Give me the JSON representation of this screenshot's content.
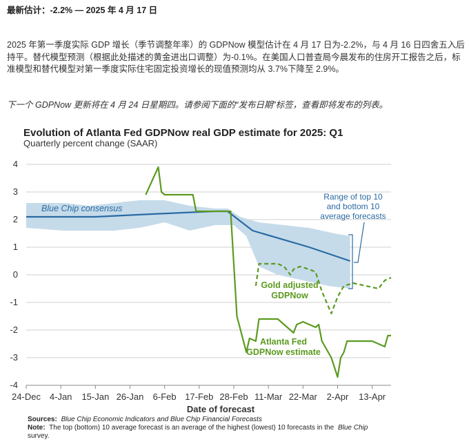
{
  "headline": "最新估计：-2.2% — 2025 年 4 月 17 日",
  "paragraph": "2025 年第一季度实际 GDP 增长（季节调整年率）的 GDPNow 模型估计在 4 月 17 日为-2.2%，与 4 月 16 日四舍五入后持平。替代模型预测（根据此处描述的黄金进出口调整）为-0.1%。在美国人口普查局今晨发布的住房开工报告之后，标准模型和替代模型对第一季度实际住宅固定投资增长的现值预测均从 3.7%下降至 2.9%。",
  "next_note": "下一个 GDPNow 更新将在 4 月 24 日星期四。请参阅下面的“发布日期”标签，查看即将发布的列表。",
  "chart_data": {
    "type": "line",
    "title": "Evolution of Atlanta Fed GDPNow real GDP estimate for 2025: Q1",
    "subtitle": "Quarterly percent change (SAAR)",
    "xlabel": "Date of forecast",
    "ylabel": "",
    "ylim": [
      -4,
      4
    ],
    "yticks": [
      4,
      3,
      2,
      1,
      0,
      -1,
      -2,
      -3,
      -4
    ],
    "xlim_days": [
      0,
      116
    ],
    "x_ticks": [
      {
        "label": "24-Dec",
        "day": 0
      },
      {
        "label": "4-Jan",
        "day": 11
      },
      {
        "label": "15-Jan",
        "day": 22
      },
      {
        "label": "26-Jan",
        "day": 33
      },
      {
        "label": "6-Feb",
        "day": 44
      },
      {
        "label": "17-Feb",
        "day": 55
      },
      {
        "label": "28-Feb",
        "day": 66
      },
      {
        "label": "11-Mar",
        "day": 77
      },
      {
        "label": "22-Mar",
        "day": 88
      },
      {
        "label": "2-Apr",
        "day": 99
      },
      {
        "label": "13-Apr",
        "day": 110
      }
    ],
    "grid": true,
    "band": {
      "name": "Range of top 10 and bottom 10 average forecasts",
      "upper": [
        [
          0,
          2.6
        ],
        [
          12,
          2.6
        ],
        [
          20,
          2.5
        ],
        [
          28,
          2.6
        ],
        [
          36,
          2.7
        ],
        [
          44,
          2.7
        ],
        [
          52,
          2.5
        ],
        [
          60,
          2.4
        ],
        [
          64,
          2.4
        ],
        [
          68,
          2.1
        ],
        [
          74,
          1.9
        ],
        [
          82,
          1.8
        ],
        [
          90,
          1.7
        ],
        [
          98,
          1.5
        ],
        [
          103,
          1.4
        ]
      ],
      "lower": [
        [
          103,
          -0.5
        ],
        [
          96,
          -0.4
        ],
        [
          88,
          -0.2
        ],
        [
          80,
          0.0
        ],
        [
          74,
          0.3
        ],
        [
          70,
          1.4
        ],
        [
          66,
          1.8
        ],
        [
          60,
          1.8
        ],
        [
          52,
          1.6
        ],
        [
          44,
          1.9
        ],
        [
          36,
          1.7
        ],
        [
          28,
          1.6
        ],
        [
          20,
          1.6
        ],
        [
          12,
          1.6
        ],
        [
          0,
          1.7
        ]
      ]
    },
    "series": [
      {
        "name": "Blue Chip consensus",
        "style": "solid",
        "color": "#2b6aa3",
        "points": [
          [
            0,
            2.1
          ],
          [
            22,
            2.1
          ],
          [
            40,
            2.2
          ],
          [
            60,
            2.3
          ],
          [
            64,
            2.3
          ],
          [
            72,
            1.6
          ],
          [
            90,
            1.0
          ],
          [
            103,
            0.5
          ]
        ]
      },
      {
        "name": "Atlanta Fed GDPNow estimate",
        "style": "solid",
        "color": "#5b9a1f",
        "points": [
          [
            38,
            2.9
          ],
          [
            42,
            3.9
          ],
          [
            43,
            3.0
          ],
          [
            44,
            2.9
          ],
          [
            53,
            2.9
          ],
          [
            54,
            2.3
          ],
          [
            65,
            2.3
          ],
          [
            67,
            -1.5
          ],
          [
            70,
            -2.8
          ],
          [
            71,
            -2.3
          ],
          [
            73,
            -2.4
          ],
          [
            74,
            -1.6
          ],
          [
            80,
            -1.6
          ],
          [
            85,
            -2.1
          ],
          [
            86,
            -1.8
          ],
          [
            88,
            -1.7
          ],
          [
            92,
            -1.9
          ],
          [
            93,
            -1.8
          ],
          [
            94,
            -2.4
          ],
          [
            97,
            -3.0
          ],
          [
            99,
            -3.7
          ],
          [
            100,
            -3.0
          ],
          [
            101,
            -2.8
          ],
          [
            102,
            -2.4
          ],
          [
            110,
            -2.4
          ],
          [
            114,
            -2.6
          ],
          [
            115,
            -2.2
          ],
          [
            116,
            -2.2
          ]
        ]
      },
      {
        "name": "Gold adjusted GDPNow",
        "style": "dashed",
        "color": "#5b9a1f",
        "points": [
          [
            73,
            -0.4
          ],
          [
            74,
            0.4
          ],
          [
            80,
            0.4
          ],
          [
            82,
            0.3
          ],
          [
            84,
            0.0
          ],
          [
            85,
            0.2
          ],
          [
            87,
            0.3
          ],
          [
            90,
            0.2
          ],
          [
            92,
            0.1
          ],
          [
            94,
            -0.6
          ],
          [
            97,
            -1.4
          ],
          [
            99,
            -0.8
          ],
          [
            101,
            -0.4
          ],
          [
            104,
            -0.3
          ],
          [
            108,
            -0.4
          ],
          [
            112,
            -0.5
          ],
          [
            114,
            -0.2
          ],
          [
            116,
            -0.1
          ]
        ]
      }
    ],
    "annotations": {
      "blue_chip": "Blue Chip consensus",
      "range_lines": [
        "Range of top 10",
        "and bottom 10",
        "average forecasts"
      ],
      "gold_lines": [
        "Gold adjusted",
        "GDPNow"
      ],
      "gdpnow_lines": [
        "Atlanta Fed",
        "GDPNow estimate"
      ]
    },
    "footnotes": {
      "sources_label": "Sources:",
      "sources_text": "Blue Chip Economic Indicators and Blue Chip Financial Forecasts",
      "note_label": "Note:",
      "note_text_1": "The top (bottom) 10 average forecast is an average of the highest (lowest) 10 forecasts in the",
      "note_italic": "Blue Chip",
      "note_text_2": "survey."
    },
    "colors": {
      "band": "#c5dbea",
      "blue": "#2b6aa3",
      "green": "#5b9a1f",
      "grid": "#cfcfcf"
    }
  }
}
